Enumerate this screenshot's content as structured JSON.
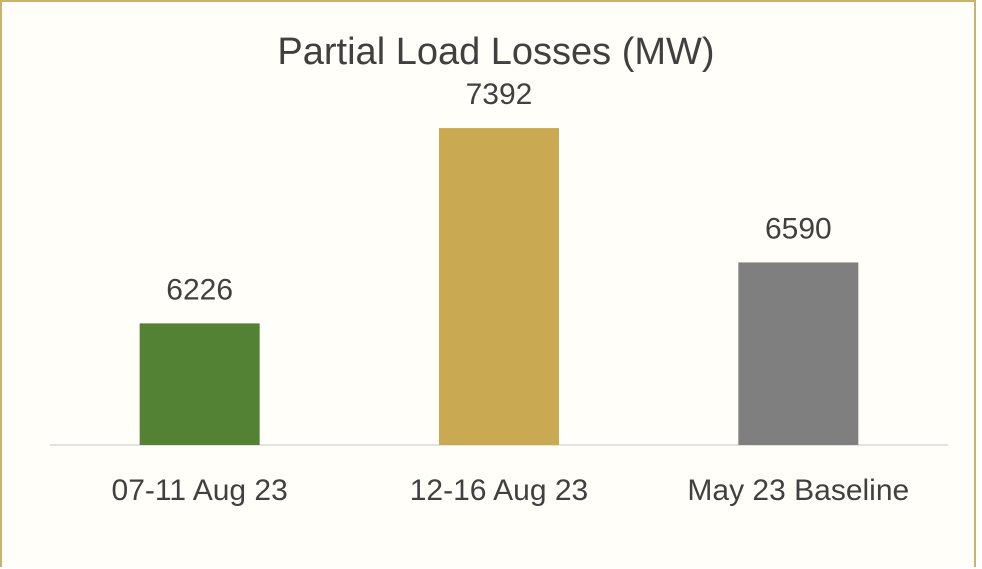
{
  "chart_data": {
    "type": "bar",
    "title": "Partial Load Losses (MW)",
    "categories": [
      "07-11 Aug 23",
      "12-16 Aug 23",
      "May 23 Baseline"
    ],
    "values": [
      6226,
      7392,
      6590
    ],
    "colors": [
      "#548235",
      "#c9a952",
      "#7f7f7f"
    ],
    "ylim": [
      5500,
      7500
    ]
  }
}
